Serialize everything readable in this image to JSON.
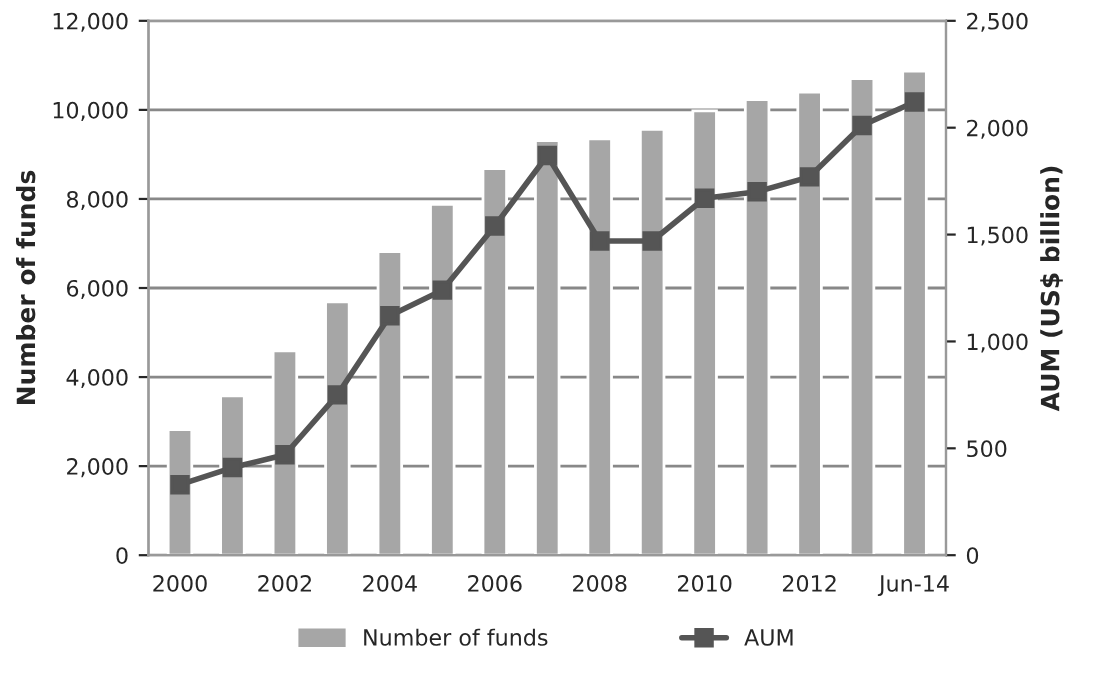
{
  "chart_data": {
    "type": "bar",
    "categories": [
      "2000",
      null,
      "2002",
      null,
      "2004",
      null,
      "2006",
      null,
      "2008",
      null,
      "2010",
      null,
      "2012",
      null,
      "Jun-14"
    ],
    "series": [
      {
        "name": "Number of funds",
        "color": "#a6a6a6",
        "values": [
          2820,
          3580,
          4590,
          5690,
          6820,
          7880,
          8680,
          9310,
          9350,
          9560,
          9980,
          10230,
          10400,
          10700,
          10870
        ]
      },
      {
        "name": "AUM",
        "type": "line",
        "axis": "y2",
        "color": "#555555",
        "marker": "square",
        "line_style": "solid",
        "values": [
          330,
          410,
          470,
          750,
          1120,
          1240,
          1540,
          1870,
          1470,
          1470,
          1670,
          1700,
          1770,
          2010,
          2120
        ]
      }
    ],
    "ylabel": "Number of funds",
    "y2label": "AUM (US$ billion)",
    "ylim": [
      0,
      12000
    ],
    "yticks": [
      {
        "value": 0,
        "label": "0"
      },
      {
        "value": 2000,
        "label": "2,000"
      },
      {
        "value": 4000,
        "label": "4,000"
      },
      {
        "value": 6000,
        "label": "6,000"
      },
      {
        "value": 8000,
        "label": "8,000"
      },
      {
        "value": 10000,
        "label": "10,000"
      },
      {
        "value": 12000,
        "label": "12,000"
      }
    ],
    "y2lim": [
      0,
      2500
    ],
    "y2ticks": [
      {
        "value": 0,
        "label": "0"
      },
      {
        "value": 500,
        "label": "500"
      },
      {
        "value": 1000,
        "label": "1,000"
      },
      {
        "value": 1500,
        "label": "1,500"
      },
      {
        "value": 2000,
        "label": "2,000"
      },
      {
        "value": 2500,
        "label": "2,500"
      }
    ],
    "grid": "y",
    "legend": "bottom"
  }
}
